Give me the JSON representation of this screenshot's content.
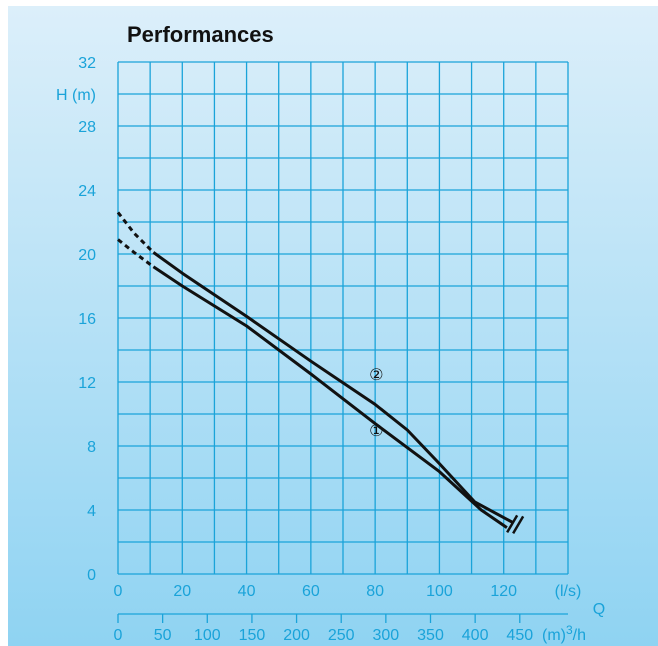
{
  "colors": {
    "background_top": "#dceffa",
    "background_bottom": "#8fd3f2",
    "grid": "#1aa3d9",
    "axis_text": "#1aa3d9",
    "curve": "#111111",
    "title": "#111111"
  },
  "chart_data": {
    "type": "line",
    "title": "Performances",
    "ylabel": "H (m)",
    "xlabel": "Q",
    "x_unit_ls": "(l/s)",
    "x_unit_m3h_base": "(m)",
    "x_unit_m3h_sup": "3",
    "x_unit_m3h_tail": "/h",
    "grid": true,
    "xlim": [
      0,
      140
    ],
    "ylim": [
      0,
      32
    ],
    "x_ticks_ls": [
      "0",
      "20",
      "40",
      "60",
      "80",
      "100",
      "120"
    ],
    "x_tick_values_ls": [
      0,
      20,
      40,
      60,
      80,
      100,
      120
    ],
    "x_ticks_m3h": [
      "0",
      "50",
      "100",
      "150",
      "200",
      "250",
      "300",
      "350",
      "400",
      "450"
    ],
    "x_tick_values_m3h": [
      0,
      50,
      100,
      150,
      200,
      250,
      300,
      350,
      400,
      450
    ],
    "y_ticks": [
      "0",
      "4",
      "8",
      "12",
      "16",
      "20",
      "24",
      "28",
      "32"
    ],
    "y_tick_values": [
      0,
      4,
      8,
      12,
      16,
      20,
      24,
      28,
      32
    ],
    "series": [
      {
        "name": "①",
        "dashed_start": [
          [
            0,
            20.9
          ],
          [
            5,
            20.1
          ],
          [
            11,
            19.2
          ]
        ],
        "values": [
          [
            11,
            19.2
          ],
          [
            20,
            18.0
          ],
          [
            40,
            15.5
          ],
          [
            60,
            12.5
          ],
          [
            80,
            9.4
          ],
          [
            100,
            6.4
          ],
          [
            113,
            4.0
          ],
          [
            121,
            2.9
          ]
        ],
        "label_at": [
          75,
          9.0
        ]
      },
      {
        "name": "②",
        "dashed_start": [
          [
            0,
            22.6
          ],
          [
            5,
            21.3
          ],
          [
            11,
            20.1
          ]
        ],
        "values": [
          [
            11,
            20.1
          ],
          [
            20,
            18.8
          ],
          [
            40,
            16.1
          ],
          [
            60,
            13.3
          ],
          [
            80,
            10.6
          ],
          [
            90,
            9.0
          ],
          [
            100,
            6.9
          ],
          [
            111,
            4.5
          ],
          [
            123,
            3.2
          ]
        ],
        "label_at": [
          75,
          12.5
        ]
      }
    ]
  }
}
